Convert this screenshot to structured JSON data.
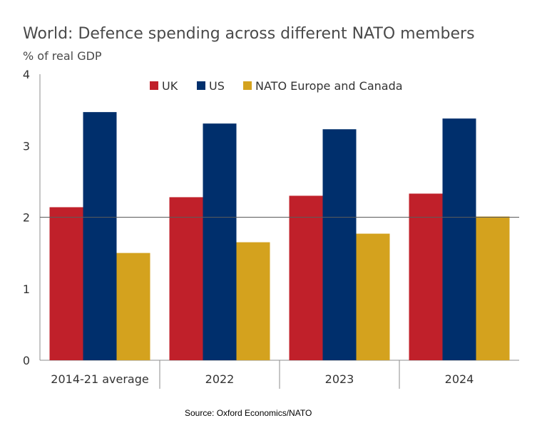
{
  "chart_data": {
    "type": "bar",
    "title": "World: Defence spending across different NATO members",
    "subtitle": "% of real GDP",
    "categories": [
      "2014-21 average",
      "2022",
      "2023",
      "2024"
    ],
    "series": [
      {
        "name": "UK",
        "color": "#c0202a",
        "values": [
          2.14,
          2.28,
          2.3,
          2.33
        ]
      },
      {
        "name": "US",
        "color": "#002f6c",
        "values": [
          3.47,
          3.31,
          3.23,
          3.38
        ]
      },
      {
        "name": "NATO Europe and Canada",
        "color": "#d4a21e",
        "values": [
          1.5,
          1.65,
          1.77,
          2.01
        ]
      }
    ],
    "ylim": [
      0,
      4
    ],
    "yticks": [
      "0",
      "1",
      "2",
      "3",
      "4"
    ],
    "reference_line": 2,
    "legend_position": "top-center",
    "source": "Source:  Oxford Economics/NATO"
  }
}
